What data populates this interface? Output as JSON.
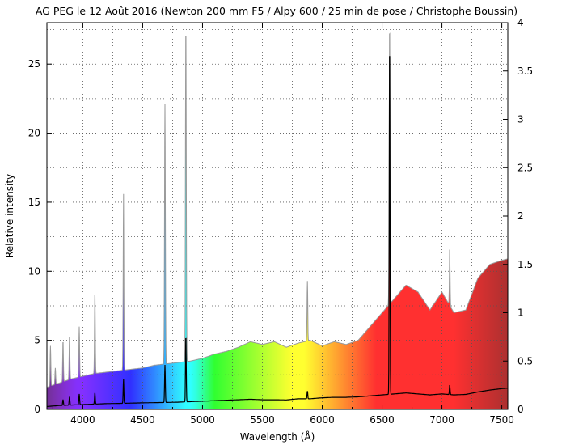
{
  "chart_data": {
    "type": "area",
    "title": "AG PEG le 12 Août 2016 (Newton 200 mm F5 / Alpy 600 / 25 min de pose / Christophe Boussin)",
    "xlabel": "Wavelength (Å)",
    "ylabel": "Relative intensity",
    "xlim": [
      3700,
      7550
    ],
    "ylim_left": [
      0,
      28
    ],
    "ylim_right": [
      0,
      4
    ],
    "x_ticks": [
      "4000",
      "4500",
      "5000",
      "5500",
      "6000",
      "6500",
      "7000",
      "7500"
    ],
    "y_ticks_left": [
      "0",
      "5",
      "10",
      "15",
      "20",
      "25"
    ],
    "y_ticks_right": [
      "0",
      "0.5",
      "1",
      "1.5",
      "2",
      "2.5",
      "3",
      "3.5",
      "4"
    ],
    "grid": true,
    "background": "colored visible spectrum under the filled profile",
    "series": [
      {
        "axis": "left",
        "style": "filled grey-outlined profile",
        "continuum": {
          "x": [
            3700,
            3800,
            3900,
            4000,
            4100,
            4200,
            4300,
            4400,
            4500,
            4600,
            4700,
            4800,
            4900,
            5000,
            5100,
            5200,
            5300,
            5400,
            5500,
            5600,
            5700,
            5800,
            5900,
            6000,
            6100,
            6200,
            6300,
            6400,
            6500,
            6600,
            6700,
            6800,
            6900,
            7000,
            7100,
            7200,
            7300,
            7400,
            7500,
            7550
          ],
          "y": [
            1.6,
            1.9,
            2.2,
            2.4,
            2.6,
            2.7,
            2.8,
            2.9,
            3.0,
            3.2,
            3.3,
            3.4,
            3.5,
            3.7,
            4.0,
            4.2,
            4.5,
            4.9,
            4.7,
            4.9,
            4.5,
            4.8,
            5.0,
            4.6,
            4.9,
            4.7,
            5.0,
            6.0,
            7.0,
            8.0,
            9.0,
            8.5,
            7.2,
            8.5,
            7.0,
            7.2,
            9.5,
            10.5,
            10.8,
            10.9
          ]
        },
        "lines": [
          {
            "x": 3730,
            "peak": 4.6
          },
          {
            "x": 3770,
            "peak": 3.0
          },
          {
            "x": 3835,
            "peak": 5.0
          },
          {
            "x": 3889,
            "peak": 5.4
          },
          {
            "x": 3970,
            "peak": 6.0
          },
          {
            "x": 4101,
            "peak": 8.6
          },
          {
            "x": 4340,
            "peak": 15.6
          },
          {
            "x": 4471,
            "peak": 2.6
          },
          {
            "x": 4686,
            "peak": 22.1
          },
          {
            "x": 4861,
            "peak": 28.0
          },
          {
            "x": 5876,
            "peak": 9.3
          },
          {
            "x": 6563,
            "peak": 28.0
          },
          {
            "x": 6678,
            "peak": 7.5
          },
          {
            "x": 7065,
            "peak": 11.7
          }
        ]
      },
      {
        "axis": "right",
        "style": "black line",
        "continuum": {
          "x": [
            3700,
            3800,
            3900,
            4000,
            4100,
            4200,
            4300,
            4400,
            4500,
            4600,
            4700,
            4800,
            4900,
            5000,
            5100,
            5200,
            5300,
            5400,
            5500,
            5600,
            5700,
            5800,
            5900,
            6000,
            6100,
            6200,
            6300,
            6400,
            6500,
            6600,
            6700,
            6800,
            6900,
            7000,
            7100,
            7200,
            7300,
            7400,
            7500,
            7550
          ],
          "y": [
            0.03,
            0.04,
            0.045,
            0.05,
            0.055,
            0.06,
            0.062,
            0.065,
            0.068,
            0.07,
            0.072,
            0.075,
            0.08,
            0.085,
            0.09,
            0.095,
            0.1,
            0.105,
            0.1,
            0.1,
            0.098,
            0.11,
            0.11,
            0.12,
            0.125,
            0.125,
            0.13,
            0.14,
            0.15,
            0.16,
            0.17,
            0.16,
            0.15,
            0.16,
            0.15,
            0.155,
            0.18,
            0.2,
            0.215,
            0.22
          ]
        },
        "lines": [
          {
            "x": 3835,
            "peak": 0.1
          },
          {
            "x": 3889,
            "peak": 0.13
          },
          {
            "x": 3970,
            "peak": 0.16
          },
          {
            "x": 4101,
            "peak": 0.17
          },
          {
            "x": 4340,
            "peak": 0.31
          },
          {
            "x": 4686,
            "peak": 0.46
          },
          {
            "x": 4861,
            "peak": 0.77
          },
          {
            "x": 5876,
            "peak": 0.19
          },
          {
            "x": 6563,
            "peak": 3.85
          },
          {
            "x": 7065,
            "peak": 0.25
          }
        ]
      }
    ]
  }
}
